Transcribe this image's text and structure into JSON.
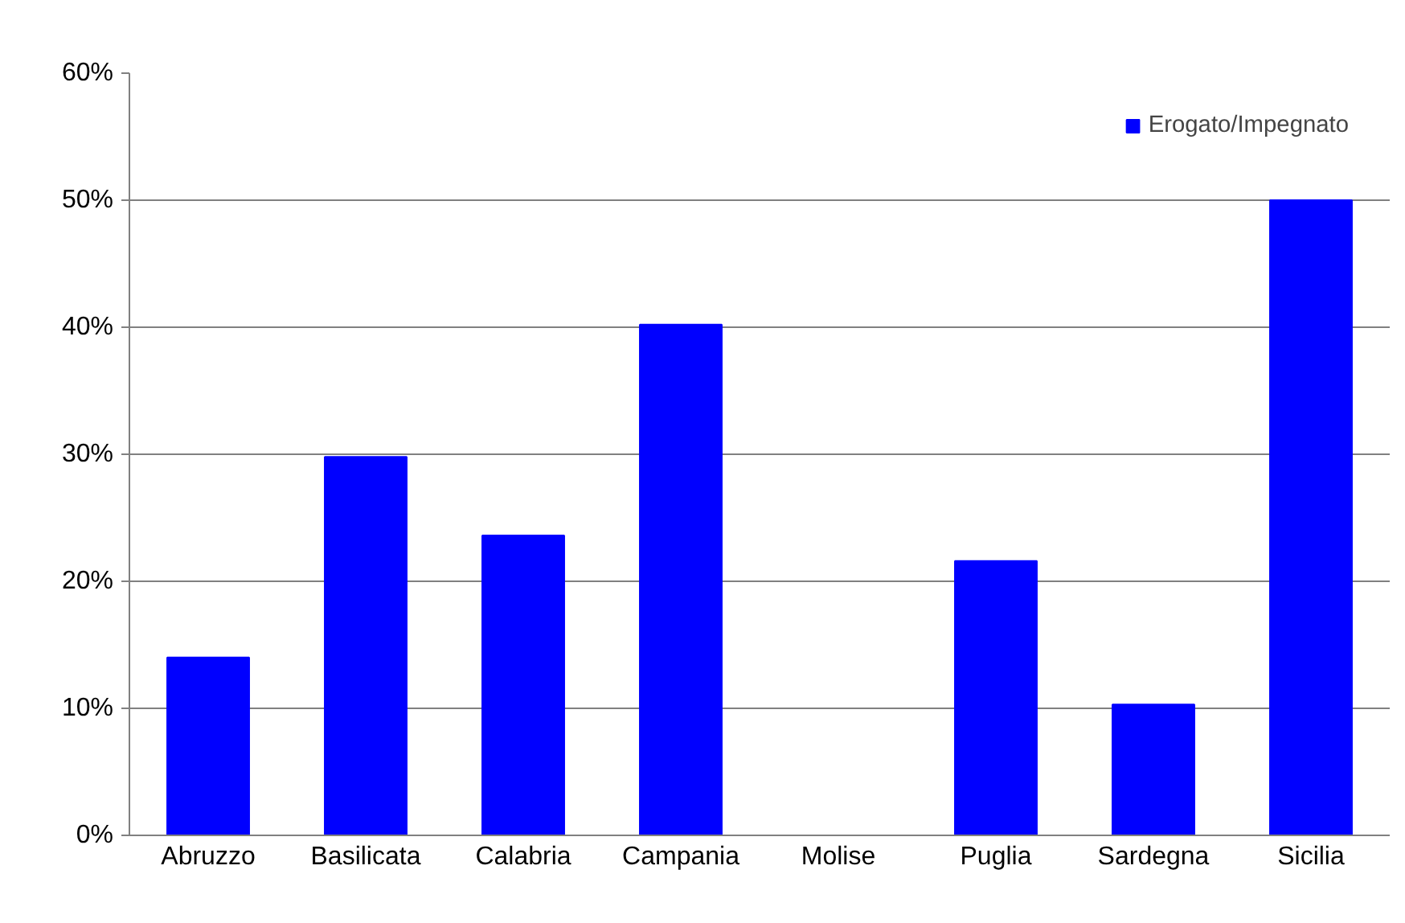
{
  "chart_data": {
    "type": "bar",
    "categories": [
      "Abruzzo",
      "Basilicata",
      "Calabria",
      "Campania",
      "Molise",
      "Puglia",
      "Sardegna",
      "Sicilia"
    ],
    "series": [
      {
        "name": "Erogato/Impegnato",
        "color": "#0000ff",
        "values": [
          14,
          29.8,
          23.6,
          40.2,
          0,
          21.6,
          10.3,
          50
        ]
      }
    ],
    "ylim": [
      0,
      60
    ],
    "yticks": [
      {
        "value": 0,
        "label": "0%"
      },
      {
        "value": 10,
        "label": "10%"
      },
      {
        "value": 20,
        "label": "20%"
      },
      {
        "value": 30,
        "label": "30%"
      },
      {
        "value": 40,
        "label": "40%"
      },
      {
        "value": 50,
        "label": "50%"
      },
      {
        "value": 60,
        "label": "60%"
      }
    ],
    "grid": "y",
    "legend": "top right"
  }
}
